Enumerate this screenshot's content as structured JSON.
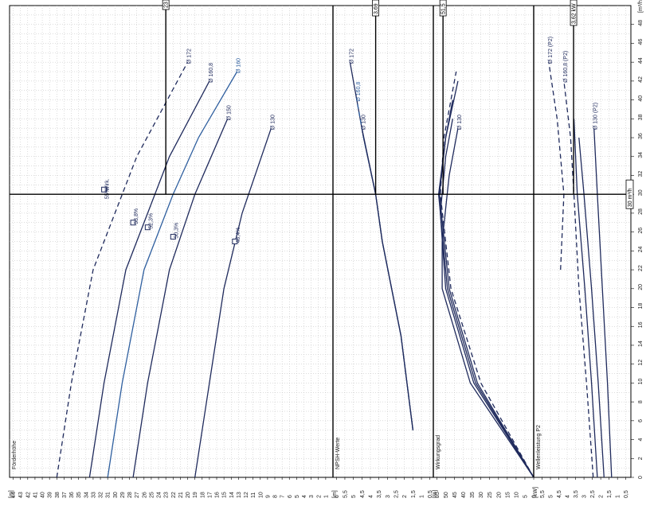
{
  "chart_data": {
    "type": "line",
    "colors": {
      "navy": "#1f2a5c",
      "blue": "#2f5f9f",
      "grid": "#bbbbbb",
      "axis": "#000000"
    },
    "flow_axis": {
      "unit": "[m³/h]",
      "ticks": [
        "0",
        "2",
        "4",
        "6",
        "8",
        "10",
        "12",
        "14",
        "16",
        "18",
        "20",
        "22",
        "24",
        "26",
        "28",
        "30",
        "32",
        "34",
        "36",
        "38",
        "40",
        "42",
        "44",
        "46",
        "48"
      ],
      "range": [
        0,
        50
      ]
    },
    "panels": [
      {
        "id": "head",
        "title": "Förderhöhe",
        "unit": "[m]",
        "ticks": [
          "44",
          "43",
          "42",
          "41",
          "40",
          "39",
          "38",
          "37",
          "36",
          "35",
          "34",
          "33",
          "32",
          "31",
          "30",
          "29",
          "28",
          "27",
          "26",
          "25",
          "24",
          "23",
          "22",
          "21",
          "20",
          "19",
          "18",
          "17",
          "16",
          "15",
          "14",
          "13",
          "12",
          "11",
          "10",
          "9",
          "8",
          "7",
          "6",
          "5",
          "4",
          "3",
          "2",
          "1"
        ],
        "range": [
          44.5,
          0
        ],
        "marker": "23",
        "series": [
          {
            "name": "Ø 172",
            "style": "dashed",
            "color": "navy",
            "points": [
              [
                0,
                38
              ],
              [
                10,
                36
              ],
              [
                22,
                33
              ],
              [
                34,
                27
              ],
              [
                44,
                20
              ]
            ]
          },
          {
            "name": "Ø 160,8",
            "style": "solid",
            "color": "navy",
            "points": [
              [
                0,
                33.5
              ],
              [
                10,
                31.5
              ],
              [
                22,
                28.5
              ],
              [
                34,
                22.5
              ],
              [
                42,
                17
              ]
            ]
          },
          {
            "name": "Ø 160",
            "style": "solid",
            "color": "blue",
            "points": [
              [
                0,
                31
              ],
              [
                10,
                29
              ],
              [
                22,
                26
              ],
              [
                30,
                22
              ],
              [
                36,
                18.5
              ],
              [
                43,
                13.2
              ]
            ]
          },
          {
            "name": "Ø 150",
            "style": "solid",
            "color": "navy",
            "points": [
              [
                0,
                27.5
              ],
              [
                10,
                25.5
              ],
              [
                22,
                22.5
              ],
              [
                30,
                19
              ],
              [
                38,
                14.5
              ]
            ]
          },
          {
            "name": "Ø 130",
            "style": "solid",
            "color": "navy",
            "points": [
              [
                0,
                19
              ],
              [
                10,
                17
              ],
              [
                20,
                15
              ],
              [
                28,
                12.5
              ],
              [
                37,
                8.5
              ]
            ]
          }
        ],
        "points": [
          {
            "label": "Wirk.",
            "value": "55%",
            "at": [
              30.5,
              31.5
            ]
          },
          {
            "label": "53,8%",
            "at": [
              27,
              27.5
            ]
          },
          {
            "label": "52,3%",
            "at": [
              26.5,
              25.5
            ]
          },
          {
            "label": "50,3%",
            "at": [
              25.5,
              22
            ]
          },
          {
            "label": "48,4%",
            "at": [
              25,
              13.5
            ]
          }
        ]
      },
      {
        "id": "npsh",
        "title": "NPSH-Werte",
        "unit": "[m]",
        "ticks": [
          "6",
          "5,5",
          "5",
          "4,5",
          "4",
          "3,5",
          "3",
          "2,5",
          "2",
          "1,5",
          "1",
          "0,5"
        ],
        "range": [
          6.2,
          0.3
        ],
        "marker": "3,69",
        "series": [
          {
            "name": "Ø 172",
            "style": "solid",
            "color": "navy",
            "points": [
              [
                5,
                1.5
              ],
              [
                15,
                2.2
              ],
              [
                25,
                3.3
              ],
              [
                30,
                3.69
              ],
              [
                36,
                4.4
              ],
              [
                44,
                5.2
              ]
            ]
          },
          {
            "name": "Ø 160,8",
            "style": "dashed",
            "color": "blue",
            "points": [
              [
                5,
                1.5
              ],
              [
                15,
                2.2
              ],
              [
                25,
                3.3
              ],
              [
                30,
                3.69
              ],
              [
                36,
                4.4
              ],
              [
                40,
                4.8
              ]
            ]
          },
          {
            "name": "Ø 130",
            "style": "solid",
            "color": "navy",
            "points": [
              [
                5,
                1.5
              ],
              [
                15,
                2.2
              ],
              [
                25,
                3.3
              ],
              [
                30,
                3.69
              ],
              [
                37,
                4.5
              ]
            ]
          }
        ],
        "labels": [
          "Ø 172",
          "Ø 160,8",
          "Ø 130"
        ]
      },
      {
        "id": "eff",
        "title": "Wirkungsgrad",
        "unit": "[%]",
        "ticks": [
          "55",
          "50",
          "45",
          "40",
          "35",
          "30",
          "25",
          "20",
          "15",
          "10",
          "5",
          "0"
        ],
        "range": [
          57,
          0
        ],
        "marker": "51,5",
        "series": [
          {
            "name": "Ø 172",
            "style": "dashed",
            "color": "navy",
            "points": [
              [
                0,
                0
              ],
              [
                10,
                30
              ],
              [
                20,
                47
              ],
              [
                30,
                53
              ],
              [
                36,
                51
              ],
              [
                43,
                44
              ]
            ]
          },
          {
            "name": "Ø 160,8",
            "style": "solid",
            "color": "navy",
            "points": [
              [
                0,
                0
              ],
              [
                10,
                32
              ],
              [
                20,
                48
              ],
              [
                30,
                53.5
              ],
              [
                36,
                50
              ],
              [
                42,
                43
              ]
            ]
          },
          {
            "name": "Ø 160",
            "style": "solid",
            "color": "navy",
            "points": [
              [
                0,
                0
              ],
              [
                10,
                33
              ],
              [
                20,
                49
              ],
              [
                30,
                54
              ],
              [
                36,
                50
              ],
              [
                40,
                46
              ]
            ]
          },
          {
            "name": "Ø 150",
            "style": "solid",
            "color": "navy",
            "points": [
              [
                0,
                0
              ],
              [
                10,
                34
              ],
              [
                20,
                50
              ],
              [
                28,
                53
              ],
              [
                34,
                50
              ],
              [
                38,
                46
              ]
            ]
          },
          {
            "name": "Ø 130",
            "style": "solid",
            "color": "navy",
            "points": [
              [
                0,
                0
              ],
              [
                10,
                36
              ],
              [
                20,
                52
              ],
              [
                25,
                52
              ],
              [
                32,
                48
              ],
              [
                37,
                43
              ]
            ]
          }
        ],
        "labels": [
          "Ø 130"
        ]
      },
      {
        "id": "power",
        "title": "Wellenleistung P2",
        "unit": "[kW]",
        "ticks": [
          "5,5",
          "5",
          "4,5",
          "4",
          "3,5",
          "3",
          "2,5",
          "2",
          "1,5",
          "1",
          "0,5"
        ],
        "range": [
          6,
          0.2
        ],
        "marker": "3,62 kW",
        "series": [
          {
            "name": "Ø 172 (P2)",
            "style": "dashed",
            "color": "navy",
            "points": [
              [
                22,
                4.4
              ],
              [
                30,
                4.2
              ],
              [
                38,
                4.6
              ],
              [
                44,
                5.1
              ]
            ]
          },
          {
            "name": "Ø 160,8 (P2)",
            "style": "dashed",
            "color": "navy",
            "points": [
              [
                0,
                2.45
              ],
              [
                10,
                2.85
              ],
              [
                20,
                3.3
              ],
              [
                30,
                3.6
              ],
              [
                36,
                3.8
              ],
              [
                42,
                4.2
              ]
            ]
          },
          {
            "name": "Ø 160",
            "style": "solid",
            "color": "navy",
            "points": [
              [
                0,
                2.2
              ],
              [
                10,
                2.55
              ],
              [
                20,
                2.95
              ],
              [
                30,
                3.4
              ],
              [
                38,
                3.6
              ]
            ]
          },
          {
            "name": "Ø 150",
            "style": "solid",
            "color": "navy",
            "points": [
              [
                0,
                1.8
              ],
              [
                10,
                2.15
              ],
              [
                20,
                2.55
              ],
              [
                30,
                3.0
              ],
              [
                36,
                3.3
              ]
            ]
          },
          {
            "name": "Ø 130 (P2)",
            "style": "solid",
            "color": "navy",
            "points": [
              [
                0,
                1.35
              ],
              [
                10,
                1.6
              ],
              [
                20,
                1.9
              ],
              [
                30,
                2.2
              ],
              [
                37,
                2.4
              ]
            ]
          }
        ],
        "labels": [
          "Ø 172 (P2)",
          "Ø 160,8 (P2)",
          "Ø 130 (P2)"
        ]
      }
    ],
    "operating_point": {
      "flow": 30,
      "flow_label": "30 m³/h"
    }
  }
}
